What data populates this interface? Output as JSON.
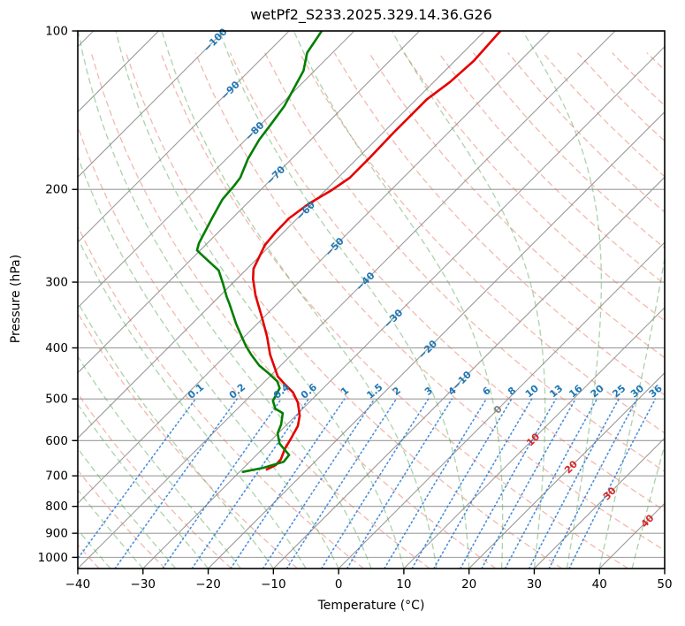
{
  "title": "wetPf2_S233.2025.329.14.36.G26",
  "axes": {
    "xlabel": "Temperature (°C)",
    "ylabel": "Pressure (hPa)",
    "x_ticks": [
      -40,
      -30,
      -20,
      -10,
      0,
      10,
      20,
      30,
      40,
      50
    ],
    "y_ticks": [
      100,
      200,
      300,
      400,
      500,
      600,
      700,
      800,
      900,
      1000
    ]
  },
  "colors": {
    "temperature_line": "#e60000",
    "dewpoint_line": "#007f00",
    "isotherm": "#909090",
    "pressure_grid": "#909090",
    "dry_adiabat": "#e57360",
    "moist_adiabat": "#5aa85a",
    "mixing_line": "#2b7bd3",
    "isotherm_label_negative": "#1f77b4",
    "isotherm_label_zero": "#808080",
    "isotherm_label_positive": "#d62728",
    "mixing_label": "#1f77b4",
    "spine": "#000000"
  },
  "chart_data": {
    "type": "line",
    "subtype": "skewT-logP",
    "title": "wetPf2_S233.2025.329.14.36.G26",
    "xlabel": "Temperature (°C)",
    "ylabel": "Pressure (hPa)",
    "xlim": [
      -40,
      50
    ],
    "ylim": [
      1050,
      100
    ],
    "y_scale": "log",
    "skew": "45deg",
    "grid": true,
    "legend": "none",
    "isotherms": {
      "start": -160,
      "end": 50,
      "step": 10
    },
    "isotherm_labels": [
      -100,
      -90,
      -80,
      -70,
      -60,
      -50,
      -40,
      -30,
      -20,
      -10,
      0,
      10,
      20,
      30,
      40
    ],
    "dry_adiabats_theta_c": {
      "start": -40,
      "end": 350,
      "step": 10
    },
    "moist_adiabats_thetaw_c": {
      "start": -60,
      "end": 45,
      "step": 5
    },
    "mixing_ratios_g_kg": [
      0.1,
      0.2,
      0.4,
      0.6,
      1,
      1.5,
      2,
      3,
      4,
      6,
      8,
      10,
      13,
      16,
      20,
      25,
      30,
      36
    ],
    "series": [
      {
        "name": "temperature",
        "label": "Temperature profile",
        "color": "#e60000",
        "points_p_hpa_t_c": [
          [
            100,
            -57.6
          ],
          [
            114,
            -57.1
          ],
          [
            125,
            -57.5
          ],
          [
            135,
            -58.4
          ],
          [
            156,
            -58.4
          ],
          [
            174,
            -58.2
          ],
          [
            190,
            -58.2
          ],
          [
            201,
            -59.1
          ],
          [
            213,
            -60.5
          ],
          [
            227,
            -61.3
          ],
          [
            241,
            -61.2
          ],
          [
            255,
            -60.9
          ],
          [
            283,
            -59.0
          ],
          [
            296,
            -57.5
          ],
          [
            318,
            -54.6
          ],
          [
            352,
            -50.0
          ],
          [
            381,
            -46.5
          ],
          [
            412,
            -43.3
          ],
          [
            453,
            -38.8
          ],
          [
            469,
            -36.5
          ],
          [
            486,
            -34.0
          ],
          [
            508,
            -31.7
          ],
          [
            538,
            -29.4
          ],
          [
            563,
            -28.1
          ],
          [
            592,
            -27.3
          ],
          [
            622,
            -26.6
          ],
          [
            651,
            -25.6
          ],
          [
            668,
            -25.5
          ],
          [
            681,
            -26.2
          ]
        ]
      },
      {
        "name": "dewpoint",
        "label": "Dewpoint profile",
        "color": "#007f00",
        "points_p_hpa_t_c": [
          [
            100,
            -85.0
          ],
          [
            110,
            -83.9
          ],
          [
            119,
            -81.7
          ],
          [
            129,
            -80.4
          ],
          [
            139,
            -79.2
          ],
          [
            150,
            -78.5
          ],
          [
            161,
            -77.9
          ],
          [
            175,
            -76.7
          ],
          [
            190,
            -75.0
          ],
          [
            197,
            -74.7
          ],
          [
            209,
            -74.4
          ],
          [
            227,
            -73.1
          ],
          [
            253,
            -71.3
          ],
          [
            261,
            -70.5
          ],
          [
            268,
            -68.6
          ],
          [
            285,
            -64.1
          ],
          [
            302,
            -61.4
          ],
          [
            320,
            -58.8
          ],
          [
            330,
            -57.3
          ],
          [
            361,
            -53.1
          ],
          [
            397,
            -48.3
          ],
          [
            412,
            -46.2
          ],
          [
            432,
            -43.3
          ],
          [
            448,
            -40.5
          ],
          [
            463,
            -38.1
          ],
          [
            477,
            -36.7
          ],
          [
            504,
            -35.8
          ],
          [
            522,
            -34.2
          ],
          [
            532,
            -32.4
          ],
          [
            559,
            -30.9
          ],
          [
            581,
            -30.1
          ],
          [
            608,
            -28.2
          ],
          [
            639,
            -25.0
          ],
          [
            658,
            -24.8
          ],
          [
            676,
            -27.0
          ],
          [
            688,
            -29.5
          ]
        ]
      }
    ]
  }
}
